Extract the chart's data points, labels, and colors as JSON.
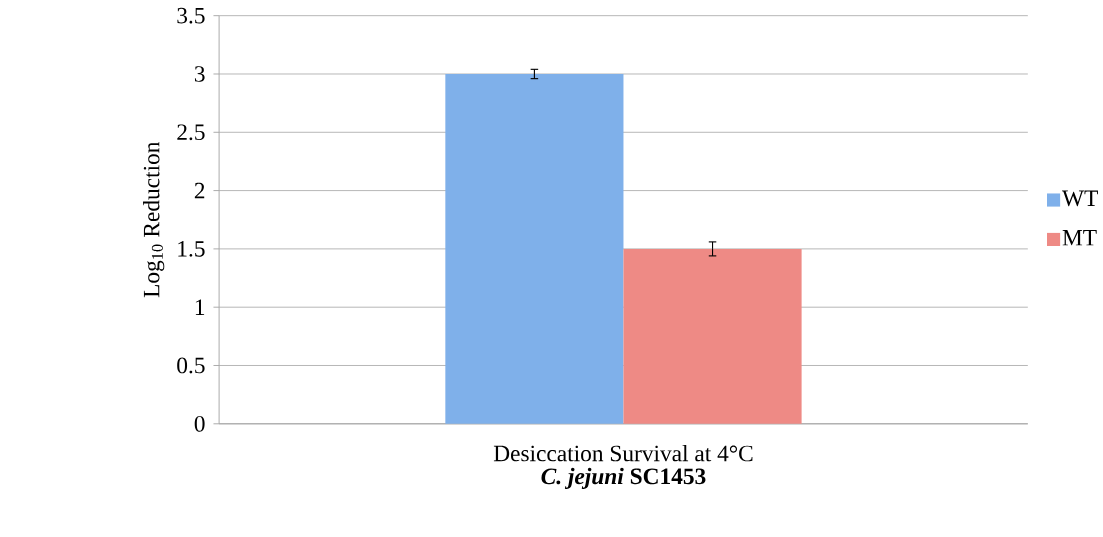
{
  "chart_data": {
    "type": "bar",
    "categories": [
      "Desiccation Survival at 4°C"
    ],
    "xlabel": "*C. jejuni* SC1453",
    "ylabel": "Log$_{10}$ Reduction",
    "series": [
      {
        "name": "WT",
        "color": "#7fb0ea",
        "values": [
          3.0
        ],
        "errors": [
          0.04
        ]
      },
      {
        "name": "MT",
        "color": "#ee8a85",
        "values": [
          1.5
        ],
        "errors": [
          0.06
        ]
      }
    ],
    "ylim": [
      0,
      3.5
    ],
    "yticks": [
      0,
      0.5,
      1,
      1.5,
      2,
      2.5,
      3,
      3.5
    ],
    "grid": "y",
    "legend": "right"
  }
}
